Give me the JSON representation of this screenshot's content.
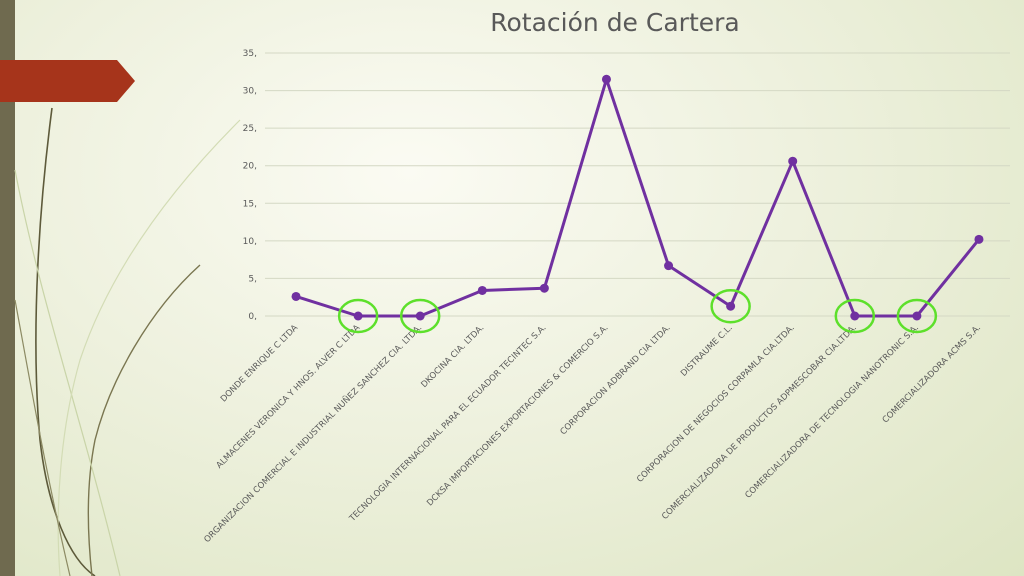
{
  "slide": {
    "accent_bar_color": "#6f6a4f",
    "tag_color": "#a6341b"
  },
  "chart_data": {
    "type": "line",
    "title": "Rotación de Cartera",
    "categories": [
      "DONDE ENRIQUE C LTDA",
      "ALMACENES VERONICA Y HNOS. ALVER C LTDA",
      "ORGANIZACION COMERCIAL E INDUSTRIAL NUÑEZ SANCHEZ CIA. LTDA.",
      "DKOCINA CIA. LTDA.",
      "TECNOLOGIA INTERNACIONAL PARA EL ECUADOR TECINTEC S.A.",
      "DCKSA IMPORTACIONES EXPORTACIONES & COMERCIO S.A.",
      "CORPORACION ADBRAND CIA LTDA.",
      "DISTRAUME C.L.",
      "CORPORACION DE NEGOCIOS CORPAMLA CIA.LTDA.",
      "COMERCIALIZADORA DE PRODUCTOS ADPMESCOBAR CIA.LTDA.",
      "COMERCIALIZADORA DE TECNOLOGIA NANOTRONIC S.A.",
      "COMERCIALIZADORA ACMS S.A."
    ],
    "series": [
      {
        "values": [
          2.6,
          0,
          0,
          3.4,
          3.7,
          31.5,
          6.7,
          1.3,
          20.6,
          0,
          0,
          10.2
        ],
        "color": "#7030a0"
      }
    ],
    "highlighted_indices": [
      1,
      2,
      7,
      9,
      10
    ],
    "highlight_color": "#5de02b",
    "ylim": [
      0,
      35
    ],
    "yticks": [
      "0,",
      "5,",
      "10,",
      "15,",
      "20,",
      "25,",
      "30,",
      "35,"
    ],
    "ytick_values": [
      0,
      5,
      10,
      15,
      20,
      25,
      30,
      35
    ],
    "grid": true,
    "xlabel": "",
    "ylabel": ""
  }
}
